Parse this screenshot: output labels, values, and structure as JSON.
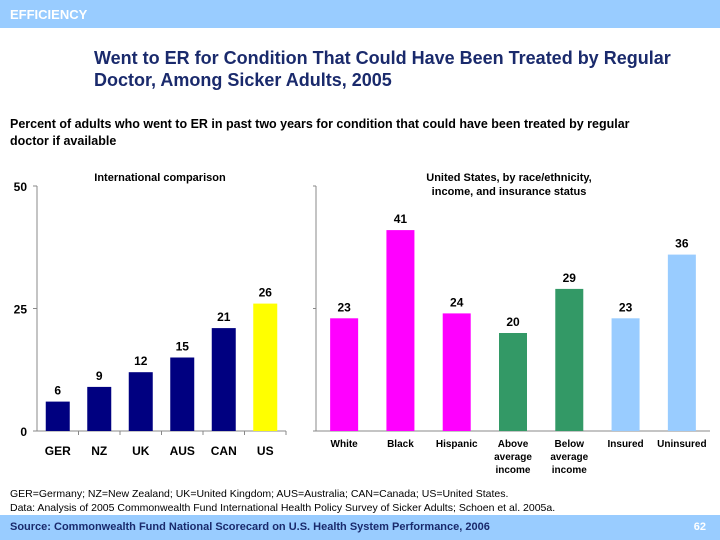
{
  "header": {
    "section": "EFFICIENCY"
  },
  "title": "Went to ER for Condition That Could Have Been Treated by Regular Doctor, Among Sicker Adults, 2005",
  "subtitle": "Percent of adults who went to ER in past two years for condition that could have been treated by regular doctor if available",
  "notes": [
    "GER=Germany; NZ=New Zealand; UK=United Kingdom; AUS=Australia; CAN=Canada; US=United States.",
    "Data: Analysis of 2005 Commonwealth Fund International Health Policy Survey of Sicker Adults; Schoen et al. 2005a."
  ],
  "footer": {
    "source": "Source: Commonwealth Fund National Scorecard on U.S. Health System Performance, 2006",
    "page": "62"
  },
  "chart_data": [
    {
      "type": "bar",
      "title": "International comparison",
      "categories": [
        "GER",
        "NZ",
        "UK",
        "AUS",
        "CAN",
        "US"
      ],
      "values": [
        6,
        9,
        12,
        15,
        21,
        26
      ],
      "colors": [
        "#000080",
        "#000080",
        "#000080",
        "#000080",
        "#000080",
        "#ffff00"
      ],
      "ylim": [
        0,
        50
      ],
      "yticks": [
        0,
        25,
        50
      ],
      "grid": false
    },
    {
      "type": "bar",
      "title": [
        "United States, by race/ethnicity,",
        "income, and insurance status"
      ],
      "categories": [
        [
          "White"
        ],
        [
          "Black"
        ],
        [
          "Hispanic"
        ],
        [
          "Above",
          "average",
          "income"
        ],
        [
          "Below",
          "average",
          "income"
        ],
        [
          "Insured"
        ],
        [
          "Uninsured"
        ]
      ],
      "values": [
        23,
        41,
        24,
        20,
        29,
        23,
        36
      ],
      "colors": [
        "#ff00ff",
        "#ff00ff",
        "#ff00ff",
        "#339966",
        "#339966",
        "#99ccff",
        "#99ccff"
      ],
      "ylim": [
        0,
        50
      ],
      "grid": false
    }
  ]
}
